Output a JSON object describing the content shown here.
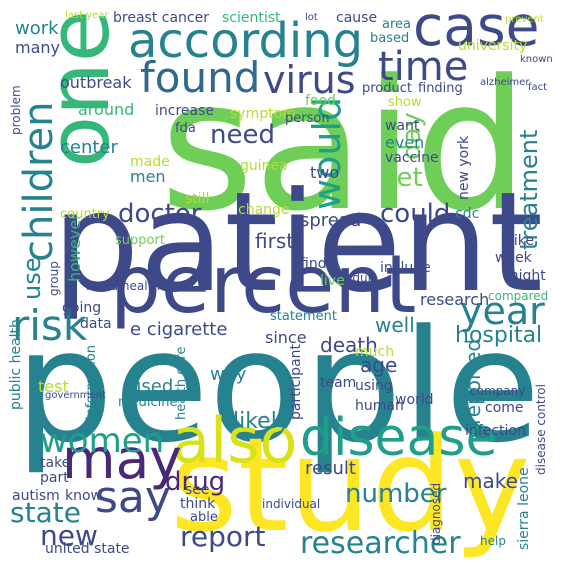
{
  "words": [
    "said",
    "people",
    "patient",
    "study",
    "one",
    "percent",
    "according",
    "case",
    "found",
    "virus",
    "time",
    "children",
    "would",
    "also",
    "may",
    "women",
    "disease",
    "risk",
    "year",
    "say",
    "report",
    "researcher",
    "need",
    "doctor",
    "could",
    "get",
    "day",
    "use",
    "treatment",
    "reported",
    "hospital",
    "state",
    "new",
    "number",
    "make",
    "drug",
    "likely",
    "used",
    "well",
    "age",
    "death",
    "first",
    "spread",
    "however",
    "center",
    "outbreak",
    "work",
    "many",
    "even",
    "result",
    "new york",
    "cdc",
    "like",
    "week",
    "might",
    "research",
    "compared",
    "company",
    "come",
    "infection",
    "disease control",
    "sierra leone",
    "help",
    "diagnosed",
    "breast cancer",
    "scientist",
    "cause",
    "area",
    "university",
    "increase",
    "food",
    "symptom",
    "person",
    "product",
    "finding",
    "show",
    "fda",
    "made",
    "men",
    "two",
    "want",
    "vaccine",
    "based",
    "around",
    "problem",
    "country",
    "still",
    "change",
    "support",
    "group",
    "going",
    "data",
    "e cigarette",
    "since",
    "statement",
    "public health",
    "test",
    "way",
    "information",
    "medicine",
    "health care",
    "participant",
    "live",
    "find",
    "include",
    "much",
    "team",
    "using",
    "human",
    "world",
    "take",
    "part",
    "autism",
    "know",
    "united state",
    "see",
    "think",
    "able",
    "individual",
    "guinea",
    "adult",
    "world health",
    "last year",
    "alzheimer",
    "known",
    "prevent",
    "lot",
    "fact",
    "government"
  ]
}
